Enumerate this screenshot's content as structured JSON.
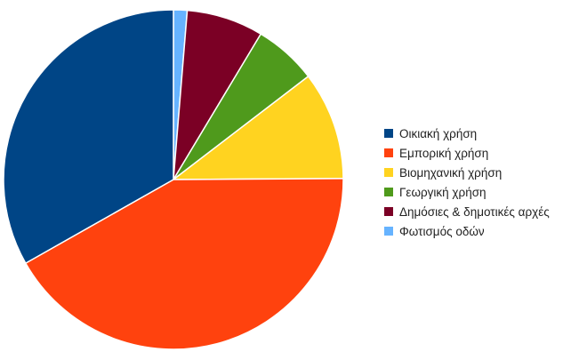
{
  "chart_data": {
    "type": "pie",
    "title": "",
    "legend_position": "right",
    "start_angle_deg": 0,
    "direction": "clockwise",
    "slices": [
      {
        "label": "Φωτισμός οδών",
        "value": 1.3,
        "color": "#66b3ff"
      },
      {
        "label": "Δημόσιες & δημοτικές αρχές",
        "value": 7.3,
        "color": "#7b0025"
      },
      {
        "label": "Γεωργική χρήση",
        "value": 6.0,
        "color": "#4f9a1c"
      },
      {
        "label": "Βιομηχανική χρήση",
        "value": 10.3,
        "color": "#ffd320"
      },
      {
        "label": "Εμπορική χρήση",
        "value": 41.9,
        "color": "#ff420e"
      },
      {
        "label": "Οικιακή χρήση",
        "value": 33.2,
        "color": "#004586"
      }
    ],
    "legend": [
      {
        "label": "Οικιακή χρήση",
        "color": "#004586"
      },
      {
        "label": "Εμπορική χρήση",
        "color": "#ff420e"
      },
      {
        "label": "Βιομηχανική χρήση",
        "color": "#ffd320"
      },
      {
        "label": "Γεωργική χρήση",
        "color": "#4f9a1c"
      },
      {
        "label": "Δημόσιες & δημοτικές αρχές",
        "color": "#7b0025"
      },
      {
        "label": "Φωτισμός οδών",
        "color": "#66b3ff"
      }
    ]
  }
}
